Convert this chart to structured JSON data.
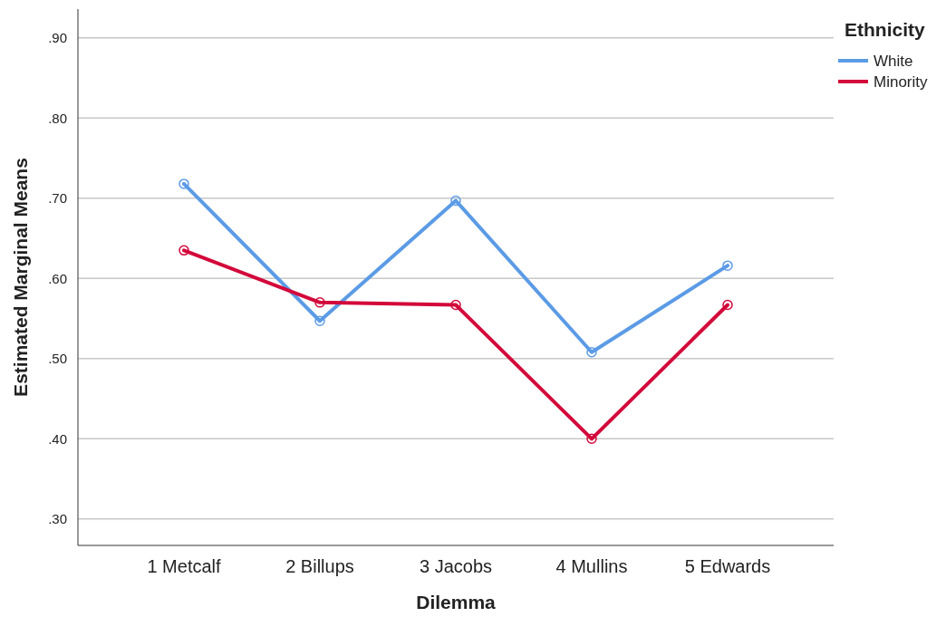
{
  "chart_data": {
    "type": "line",
    "xlabel": "Dilemma",
    "ylabel": "Estimated Marginal Means",
    "legend_title": "Ethnicity",
    "categories": [
      "1 Metcalf",
      "2 Billups",
      "3 Jacobs",
      "4 Mullins",
      "5 Edwards"
    ],
    "series": [
      {
        "name": "White",
        "color": "#5b9be6",
        "values": [
          0.718,
          0.547,
          0.697,
          0.508,
          0.616
        ]
      },
      {
        "name": "Minority",
        "color": "#d3083a",
        "values": [
          0.635,
          0.57,
          0.567,
          0.4,
          0.567
        ]
      }
    ],
    "ylim": [
      0.267,
      0.936
    ],
    "yticks": [
      {
        "value": 0.3,
        "label": ".30"
      },
      {
        "value": 0.4,
        "label": ".40"
      },
      {
        "value": 0.5,
        "label": ".50"
      },
      {
        "value": 0.6,
        "label": ".60"
      },
      {
        "value": 0.7,
        "label": ".70"
      },
      {
        "value": 0.8,
        "label": ".80"
      },
      {
        "value": 0.9,
        "label": ".90"
      }
    ],
    "grid": "y",
    "legend": "top right",
    "marker": "circle",
    "line_style": "solid"
  }
}
